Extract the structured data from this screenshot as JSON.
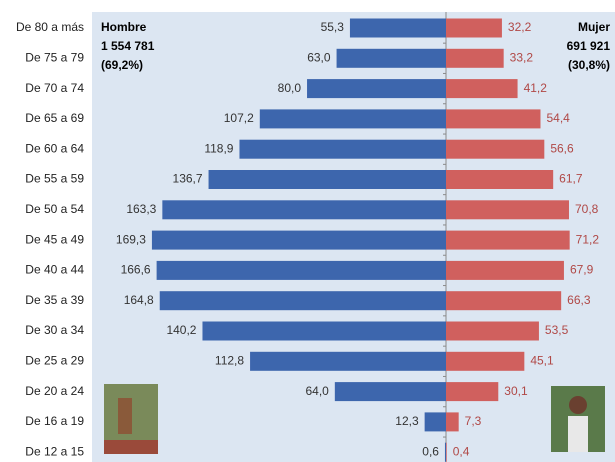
{
  "chart_data": {
    "type": "pyramid",
    "categories": [
      "De 80 a más",
      "De 75 a 79",
      "De 70 a 74",
      "De 65 a 69",
      "De 60 a 64",
      "De 55 a 59",
      "De 50 a 54",
      "De 45 a 49",
      "De 40 a 44",
      "De 35 a 39",
      "De 30 a 34",
      "De 25 a 29",
      "De 20 a 24",
      "De 16 a 19",
      "De 12 a 15"
    ],
    "series": [
      {
        "name": "Hombre",
        "color": "#3d66ad",
        "values": [
          55.3,
          63.0,
          80.0,
          107.2,
          118.9,
          136.7,
          163.3,
          169.3,
          166.6,
          164.8,
          140.2,
          112.8,
          64.0,
          12.3,
          0.6
        ],
        "value_labels": [
          "55,3",
          "63,0",
          "80,0",
          "107,2",
          "118,9",
          "136,7",
          "163,3",
          "169,3",
          "166,6",
          "164,8",
          "140,2",
          "112,8",
          "64,0",
          "12,3",
          "0,6"
        ],
        "annotation": [
          "1 554 781",
          "(69,2%)"
        ]
      },
      {
        "name": "Mujer",
        "color": "#d0605e",
        "values": [
          32.2,
          33.2,
          41.2,
          54.4,
          56.6,
          61.7,
          70.8,
          71.2,
          67.9,
          66.3,
          53.5,
          45.1,
          30.1,
          7.3,
          0.4
        ],
        "value_labels": [
          "32,2",
          "33,2",
          "41,2",
          "54,4",
          "56,6",
          "61,7",
          "70,8",
          "71,2",
          "67,9",
          "66,3",
          "53,5",
          "45,1",
          "30,1",
          "7,3",
          "0,4"
        ],
        "annotation": [
          "691 921",
          "(30,8%)"
        ]
      }
    ]
  }
}
